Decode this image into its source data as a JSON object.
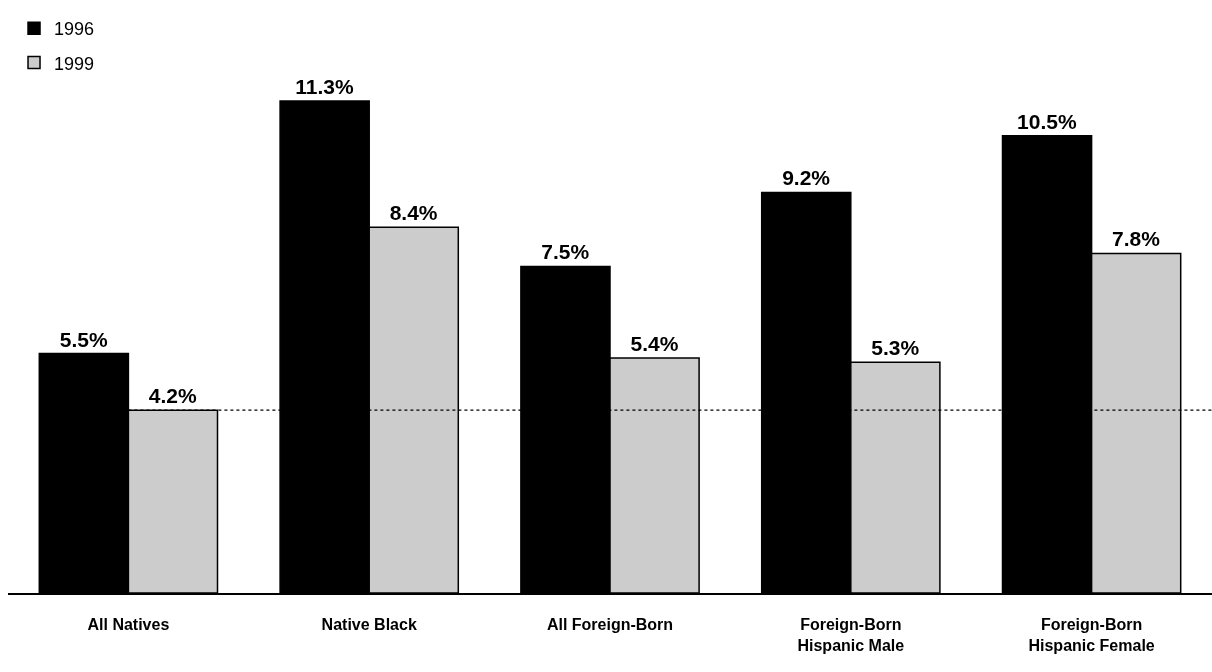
{
  "chart_data": {
    "type": "bar",
    "categories": [
      "All Natives",
      "Native Black",
      "All Foreign-Born",
      "Foreign-Born\nHispanic Male",
      "Foreign-Born\nHispanic Female"
    ],
    "series": [
      {
        "name": "1996",
        "color": "#000000",
        "values": [
          5.5,
          11.3,
          7.5,
          9.2,
          10.5
        ],
        "value_labels": [
          "5.5%",
          "11.3%",
          "7.5%",
          "9.2%",
          "10.5%"
        ]
      },
      {
        "name": "1999",
        "color": "#cccccc",
        "values": [
          4.2,
          8.4,
          5.4,
          5.3,
          7.8
        ],
        "value_labels": [
          "4.2%",
          "8.4%",
          "5.4%",
          "5.3%",
          "7.8%"
        ]
      }
    ],
    "ref_lines": [
      {
        "axis": "y",
        "value": 4.2,
        "line_style": "dotted",
        "color": "#000000"
      }
    ],
    "legend": "top left",
    "tick_labels": "x"
  }
}
